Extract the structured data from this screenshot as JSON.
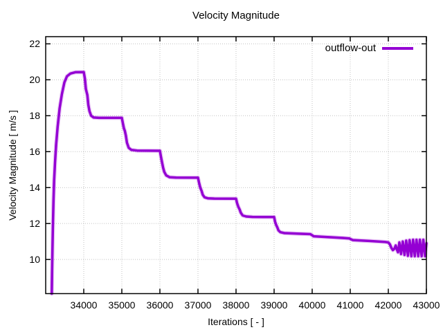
{
  "title": "Velocity Magnitude",
  "legend": {
    "series_label": "outflow-out"
  },
  "axes": {
    "x": {
      "label": "Iterations [ - ]",
      "min": 33000,
      "max": 43000,
      "ticks": [
        34000,
        35000,
        36000,
        37000,
        38000,
        39000,
        40000,
        41000,
        42000,
        43000
      ]
    },
    "y": {
      "label": "Velocity Magnitude [ m/s ]",
      "min": 8.1,
      "max": 22.4,
      "ticks": [
        10,
        12,
        14,
        16,
        18,
        20,
        22
      ]
    }
  },
  "colors": {
    "series": "#9400D3",
    "grid": "#c0c0c0",
    "axis": "#000000",
    "background": "#ffffff"
  },
  "chart_data": {
    "type": "line",
    "title": "Velocity Magnitude",
    "xlabel": "Iterations [ - ]",
    "ylabel": "Velocity Magnitude [ m/s ]",
    "xlim": [
      33000,
      43000
    ],
    "ylim": [
      8.1,
      22.4
    ],
    "grid": true,
    "grid_style": "dotted",
    "legend_position": "top-right-inside",
    "series": [
      {
        "name": "outflow-out",
        "color": "#9400D3",
        "points": [
          [
            33160,
            8.1
          ],
          [
            33168,
            9.2
          ],
          [
            33178,
            10.6
          ],
          [
            33190,
            12.0
          ],
          [
            33205,
            13.3
          ],
          [
            33222,
            14.4
          ],
          [
            33245,
            15.4
          ],
          [
            33275,
            16.4
          ],
          [
            33315,
            17.4
          ],
          [
            33365,
            18.4
          ],
          [
            33425,
            19.2
          ],
          [
            33490,
            19.85
          ],
          [
            33560,
            20.2
          ],
          [
            33650,
            20.35
          ],
          [
            33780,
            20.42
          ],
          [
            34000,
            20.43
          ],
          [
            34030,
            20.05
          ],
          [
            34055,
            19.5
          ],
          [
            34075,
            19.32
          ],
          [
            34095,
            19.15
          ],
          [
            34120,
            18.6
          ],
          [
            34150,
            18.25
          ],
          [
            34195,
            18.0
          ],
          [
            34260,
            17.9
          ],
          [
            34400,
            17.88
          ],
          [
            35000,
            17.88
          ],
          [
            35025,
            17.6
          ],
          [
            35055,
            17.3
          ],
          [
            35080,
            17.15
          ],
          [
            35105,
            16.9
          ],
          [
            35135,
            16.5
          ],
          [
            35180,
            16.22
          ],
          [
            35250,
            16.1
          ],
          [
            35400,
            16.06
          ],
          [
            36000,
            16.05
          ],
          [
            36025,
            15.75
          ],
          [
            36055,
            15.42
          ],
          [
            36085,
            15.1
          ],
          [
            36115,
            14.88
          ],
          [
            36165,
            14.68
          ],
          [
            36255,
            14.58
          ],
          [
            36420,
            14.56
          ],
          [
            37000,
            14.55
          ],
          [
            37025,
            14.3
          ],
          [
            37060,
            14.0
          ],
          [
            37095,
            13.82
          ],
          [
            37125,
            13.6
          ],
          [
            37175,
            13.46
          ],
          [
            37265,
            13.4
          ],
          [
            37430,
            13.39
          ],
          [
            38000,
            13.38
          ],
          [
            38025,
            13.15
          ],
          [
            38060,
            12.93
          ],
          [
            38095,
            12.78
          ],
          [
            38125,
            12.6
          ],
          [
            38175,
            12.45
          ],
          [
            38265,
            12.39
          ],
          [
            38430,
            12.37
          ],
          [
            39000,
            12.36
          ],
          [
            39025,
            12.1
          ],
          [
            39055,
            11.92
          ],
          [
            39085,
            11.78
          ],
          [
            39115,
            11.62
          ],
          [
            39165,
            11.52
          ],
          [
            39270,
            11.47
          ],
          [
            39600,
            11.44
          ],
          [
            39950,
            11.41
          ],
          [
            39990,
            11.36
          ],
          [
            40040,
            11.29
          ],
          [
            40400,
            11.25
          ],
          [
            40800,
            11.2
          ],
          [
            40980,
            11.17
          ],
          [
            41020,
            11.12
          ],
          [
            41070,
            11.08
          ],
          [
            41500,
            11.03
          ],
          [
            41900,
            10.98
          ],
          [
            42000,
            10.95
          ],
          [
            42040,
            10.85
          ],
          [
            42080,
            10.65
          ],
          [
            42120,
            10.52
          ],
          [
            42160,
            10.6
          ],
          [
            42195,
            10.78
          ],
          [
            42225,
            10.55
          ],
          [
            42255,
            10.4
          ],
          [
            42290,
            10.95
          ],
          [
            42335,
            10.3
          ],
          [
            42380,
            11.0
          ],
          [
            42425,
            10.25
          ],
          [
            42470,
            11.05
          ],
          [
            42515,
            10.2
          ],
          [
            42560,
            11.08
          ],
          [
            42605,
            10.18
          ],
          [
            42650,
            11.1
          ],
          [
            42695,
            10.18
          ],
          [
            42740,
            11.1
          ],
          [
            42785,
            10.18
          ],
          [
            42830,
            11.1
          ],
          [
            42875,
            10.18
          ],
          [
            42920,
            11.1
          ],
          [
            42965,
            10.18
          ],
          [
            43000,
            10.9
          ]
        ]
      }
    ]
  }
}
